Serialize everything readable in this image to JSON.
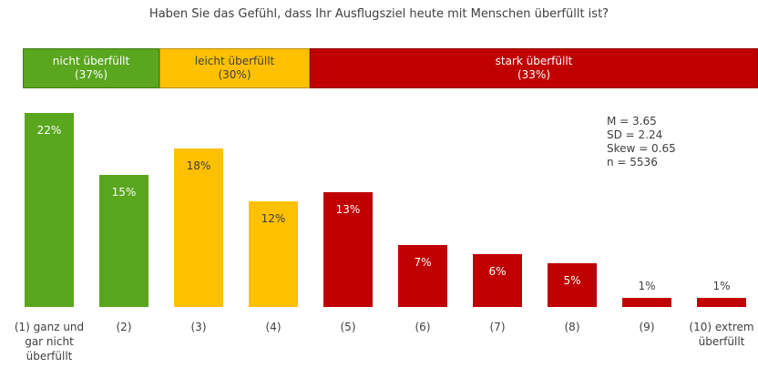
{
  "chart_data": {
    "type": "bar",
    "title": "Haben Sie das Gefühl, dass Ihr Ausflugsziel heute mit Menschen überfüllt ist?",
    "bands": [
      {
        "name": "nicht überfüllt",
        "label": "(37%)",
        "color": "#5aa61e"
      },
      {
        "name": "leicht überfüllt",
        "label": "(30%)",
        "color": "#ffc000"
      },
      {
        "name": "stark überfüllt",
        "label": "(33%)",
        "color": "#c00000"
      }
    ],
    "stats": [
      "M = 3.65",
      "SD = 2.24",
      "Skew = 0.65",
      "n = 5536"
    ],
    "categories": [
      "(1) ganz und gar nicht überfüllt",
      "(2)",
      "(3)",
      "(4)",
      "(5)",
      "(6)",
      "(7)",
      "(8)",
      "(9)",
      "(10) extrem überfüllt"
    ],
    "values": [
      22,
      15,
      18,
      12,
      13,
      7,
      6,
      5,
      1,
      1
    ],
    "value_labels": [
      "22%",
      "15%",
      "18%",
      "12%",
      "13%",
      "7%",
      "6%",
      "5%",
      "1%",
      "1%"
    ],
    "colors": [
      "#5aa61e",
      "#5aa61e",
      "#ffc000",
      "#ffc000",
      "#c00000",
      "#c00000",
      "#c00000",
      "#c00000",
      "#c00000",
      "#c00000"
    ],
    "ylim": [
      0,
      22
    ]
  }
}
